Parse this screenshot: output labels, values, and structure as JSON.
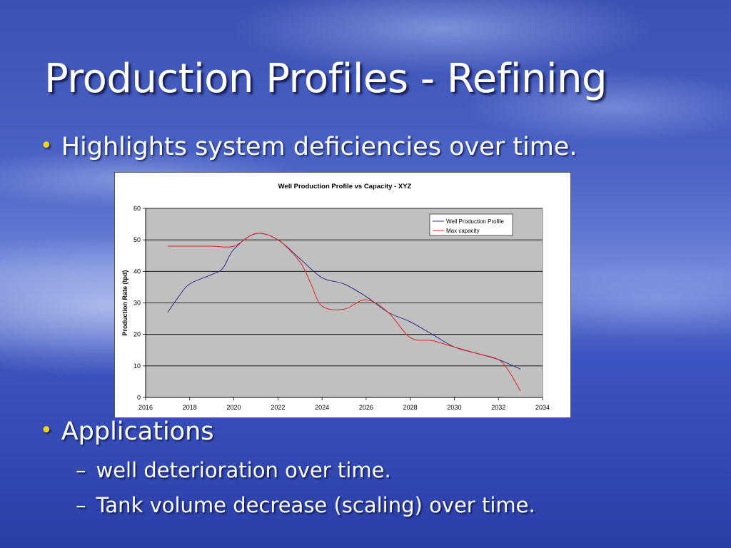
{
  "slide": {
    "title": "Production Profiles - Refining",
    "bullet1": "Highlights system deficiencies over time.",
    "bullet2": "Applications",
    "sub_items": [
      "well deterioration over time.",
      "Tank volume decrease (scaling) over time."
    ],
    "bullet_marker": "•",
    "sub_marker": "–"
  },
  "colors": {
    "bullet": "#f5d31a",
    "series_production": "#2a2f8f",
    "series_capacity": "#e8231e",
    "plot_area": "#c0c0c0"
  },
  "chart_data": {
    "type": "line",
    "title": "Well Production Profile vs Capacity - XYZ",
    "xlabel": "",
    "ylabel": "Production Rate (tpd)",
    "xlim": [
      2016,
      2034
    ],
    "ylim": [
      0,
      60
    ],
    "xticks": [
      2016,
      2018,
      2020,
      2022,
      2024,
      2026,
      2028,
      2030,
      2032,
      2034
    ],
    "yticks": [
      0,
      10,
      20,
      30,
      40,
      50,
      60
    ],
    "grid": "horizontal",
    "legend": "top-right",
    "series": [
      {
        "name": "Well Production Profile",
        "x": [
          2017,
          2017.5,
          2018,
          2019,
          2019.5,
          2020,
          2021,
          2022,
          2023,
          2024,
          2025,
          2026,
          2027,
          2028,
          2029,
          2030,
          2031,
          2032,
          2033
        ],
        "y": [
          27,
          32,
          36,
          39,
          41,
          47,
          52,
          50,
          44,
          38,
          36,
          32,
          27,
          24,
          20,
          16,
          14,
          12,
          9
        ]
      },
      {
        "name": "Max capacity",
        "x": [
          2017,
          2018,
          2019,
          2020,
          2021,
          2022,
          2023,
          2023.5,
          2024,
          2025,
          2026,
          2027,
          2028,
          2029,
          2030,
          2031,
          2032,
          2032.5,
          2033
        ],
        "y": [
          48,
          48,
          48,
          48,
          52,
          50,
          43,
          36,
          29,
          28,
          31,
          27,
          19,
          18,
          16,
          14,
          12,
          8,
          2
        ]
      }
    ]
  }
}
